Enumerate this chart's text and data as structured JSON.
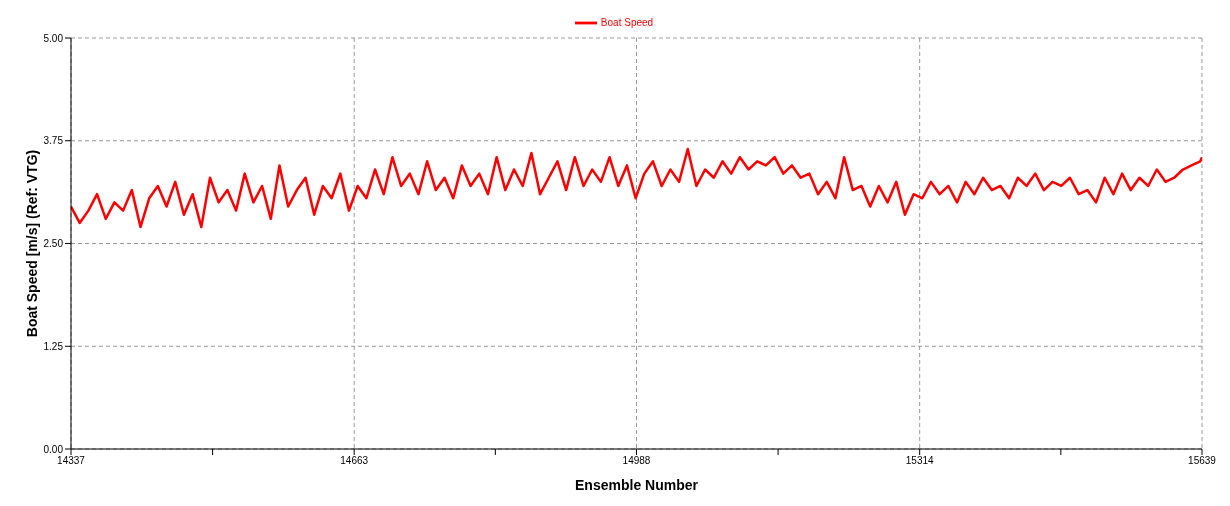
{
  "chart_data": {
    "type": "line",
    "xlabel": "Ensemble Number",
    "ylabel": "Boat Speed [m/s]  (Ref: VTG)",
    "x": [
      14337,
      14347,
      14357,
      14367,
      14377,
      14387,
      14397,
      14407,
      14417,
      14427,
      14437,
      14447,
      14457,
      14467,
      14477,
      14487,
      14497,
      14507,
      14517,
      14527,
      14537,
      14547,
      14557,
      14567,
      14577,
      14587,
      14597,
      14607,
      14617,
      14627,
      14637,
      14647,
      14657,
      14667,
      14677,
      14687,
      14697,
      14707,
      14717,
      14727,
      14737,
      14747,
      14757,
      14767,
      14777,
      14787,
      14797,
      14807,
      14817,
      14827,
      14837,
      14847,
      14857,
      14867,
      14877,
      14887,
      14897,
      14907,
      14917,
      14927,
      14937,
      14947,
      14957,
      14967,
      14977,
      14987,
      14997,
      15007,
      15017,
      15027,
      15037,
      15047,
      15057,
      15067,
      15077,
      15087,
      15097,
      15107,
      15117,
      15127,
      15137,
      15147,
      15157,
      15167,
      15177,
      15187,
      15197,
      15207,
      15217,
      15227,
      15237,
      15247,
      15257,
      15267,
      15277,
      15287,
      15297,
      15307,
      15317,
      15327,
      15337,
      15347,
      15357,
      15367,
      15377,
      15387,
      15397,
      15407,
      15417,
      15427,
      15437,
      15447,
      15457,
      15467,
      15477,
      15487,
      15497,
      15507,
      15517,
      15527,
      15537,
      15547,
      15557,
      15567,
      15577,
      15587,
      15597,
      15607,
      15617,
      15627,
      15637,
      15639
    ],
    "series": [
      {
        "name": "Boat Speed",
        "color": "#ff0000",
        "values": [
          2.95,
          2.75,
          2.9,
          3.1,
          2.8,
          3.0,
          2.9,
          3.15,
          2.7,
          3.05,
          3.2,
          2.95,
          3.25,
          2.85,
          3.1,
          2.7,
          3.3,
          3.0,
          3.15,
          2.9,
          3.35,
          3.0,
          3.2,
          2.8,
          3.45,
          2.95,
          3.15,
          3.3,
          2.85,
          3.2,
          3.05,
          3.35,
          2.9,
          3.2,
          3.05,
          3.4,
          3.1,
          3.55,
          3.2,
          3.35,
          3.1,
          3.5,
          3.15,
          3.3,
          3.05,
          3.45,
          3.2,
          3.35,
          3.1,
          3.55,
          3.15,
          3.4,
          3.2,
          3.6,
          3.1,
          3.3,
          3.5,
          3.15,
          3.55,
          3.2,
          3.4,
          3.25,
          3.55,
          3.2,
          3.45,
          3.05,
          3.35,
          3.5,
          3.2,
          3.4,
          3.25,
          3.65,
          3.2,
          3.4,
          3.3,
          3.5,
          3.35,
          3.55,
          3.4,
          3.5,
          3.45,
          3.55,
          3.35,
          3.45,
          3.3,
          3.35,
          3.1,
          3.25,
          3.05,
          3.55,
          3.15,
          3.2,
          2.95,
          3.2,
          3.0,
          3.25,
          2.85,
          3.1,
          3.05,
          3.25,
          3.1,
          3.2,
          3.0,
          3.25,
          3.1,
          3.3,
          3.15,
          3.2,
          3.05,
          3.3,
          3.2,
          3.35,
          3.15,
          3.25,
          3.2,
          3.3,
          3.1,
          3.15,
          3.0,
          3.3,
          3.1,
          3.35,
          3.15,
          3.3,
          3.2,
          3.4,
          3.25,
          3.3,
          3.4,
          3.45,
          3.5,
          3.55
        ]
      }
    ],
    "xlim": [
      14337,
      15639
    ],
    "xticks": [
      14337,
      {
        "value": 14500,
        "label": null
      },
      14663,
      {
        "value": 14825.5,
        "label": null
      },
      14988,
      {
        "value": 15151,
        "label": null
      },
      15314,
      {
        "value": 15476.5,
        "label": null
      },
      15639
    ],
    "ylim": [
      0,
      5
    ],
    "yticks": [
      {
        "value": 0,
        "label": "0.00"
      },
      {
        "value": 1.25,
        "label": "1.25"
      },
      {
        "value": 2.5,
        "label": "2.50"
      },
      {
        "value": 3.75,
        "label": "3.75"
      },
      {
        "value": 5,
        "label": "5.00"
      }
    ],
    "grid": true,
    "legend": "top",
    "marker": "none",
    "line_style": "solid"
  }
}
